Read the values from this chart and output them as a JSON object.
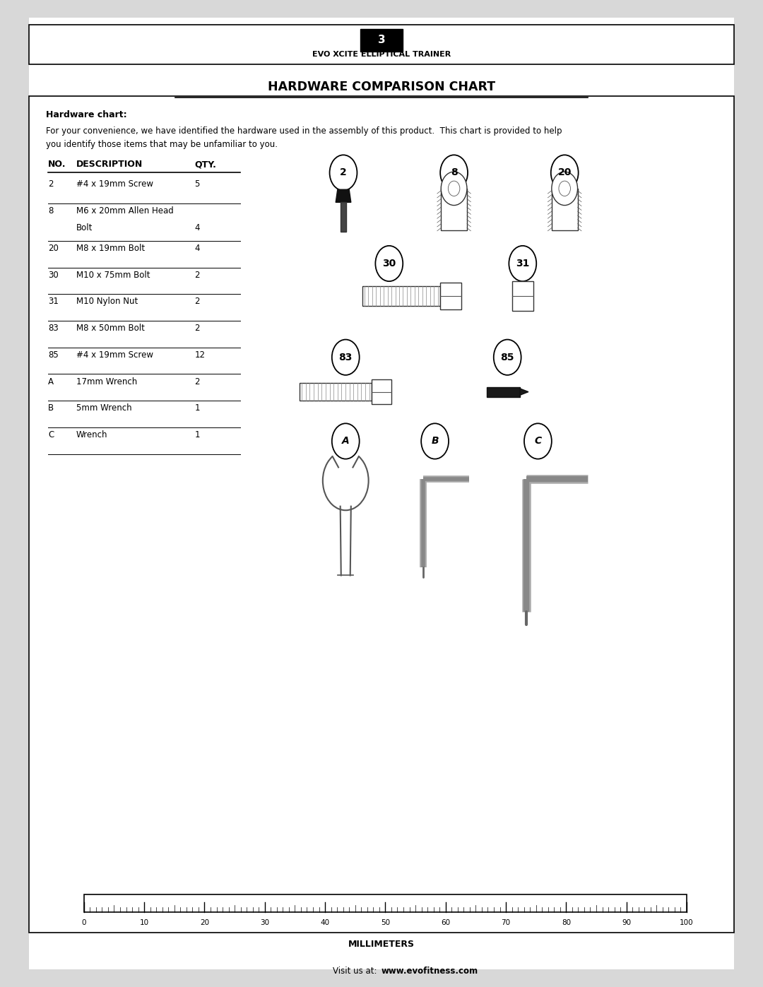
{
  "page_number": "3",
  "header_title": "EVO XCITE ELLIPTICAL TRAINER",
  "main_title": "HARDWARE COMPARISON CHART",
  "hardware_chart_label": "Hardware chart:",
  "intro_line1": "For your convenience, we have identified the hardware used in the assembly of this product.  This chart is provided to help",
  "intro_line2": "you identify those items that may be unfamiliar to you.",
  "table_rows": [
    [
      "2",
      "#4 x 19mm Screw",
      "5"
    ],
    [
      "8",
      "M6 x 20mm Allen Head",
      "Bolt",
      "4"
    ],
    [
      "20",
      "M8 x 19mm Bolt",
      "4"
    ],
    [
      "30",
      "M10 x 75mm Bolt",
      "2"
    ],
    [
      "31",
      "M10 Nylon Nut",
      "2"
    ],
    [
      "83",
      "M8 x 50mm Bolt",
      "2"
    ],
    [
      "85",
      "#4 x 19mm Screw",
      "12"
    ],
    [
      "A",
      "17mm Wrench",
      "2"
    ],
    [
      "B",
      "5mm Wrench",
      "1"
    ],
    [
      "C",
      "Wrench",
      "1"
    ]
  ],
  "footer_plain": "Visit us at: ",
  "footer_bold": "www.evofitness.com",
  "ruler_label": "MILLIMETERS",
  "ruler_ticks": [
    0,
    10,
    20,
    30,
    40,
    50,
    60,
    70,
    80,
    90,
    100
  ]
}
